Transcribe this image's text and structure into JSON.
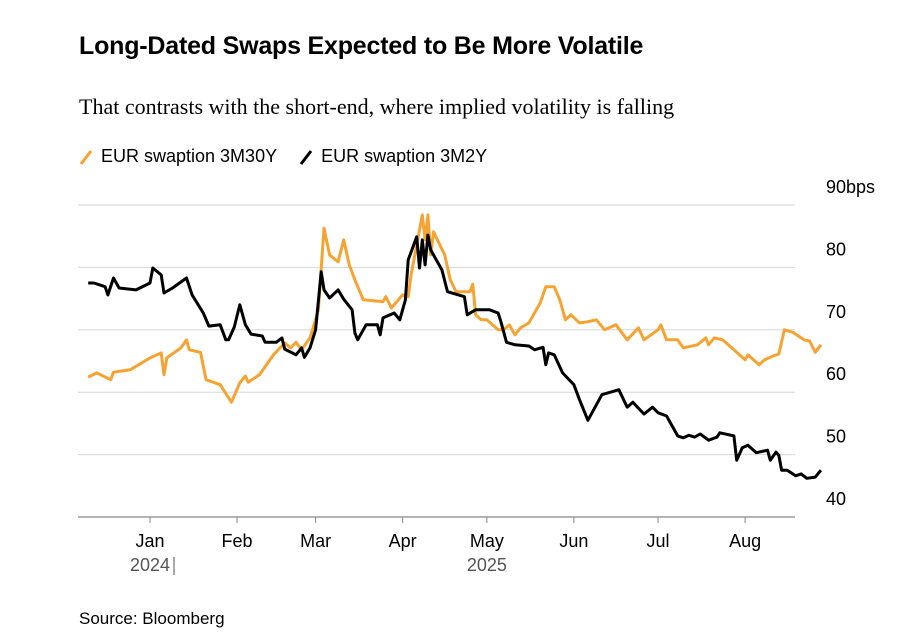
{
  "title": "Long-Dated Swaps Expected to Be More Volatile",
  "subtitle": "That contrasts with the short-end, where implied volatility is falling",
  "source": "Source: Bloomberg",
  "chart_data": {
    "type": "line",
    "title": "Long-Dated Swaps Expected to Be More Volatile",
    "ylim": [
      40,
      90
    ],
    "y_unit": "bps",
    "y_ticks": [
      "90bps",
      "80",
      "70",
      "60",
      "50",
      "40"
    ],
    "y_tick_values": [
      90,
      80,
      70,
      60,
      50,
      40
    ],
    "x_ticks": [
      {
        "label": "Jan",
        "date": "2025-01-01"
      },
      {
        "label": "Feb",
        "date": "2025-02-01"
      },
      {
        "label": "Mar",
        "date": "2025-03-01"
      },
      {
        "label": "Apr",
        "date": "2025-04-01"
      },
      {
        "label": "May",
        "date": "2025-05-01"
      },
      {
        "label": "Jun",
        "date": "2025-06-01"
      },
      {
        "label": "Jul",
        "date": "2025-07-01"
      },
      {
        "label": "Aug",
        "date": "2025-08-01"
      }
    ],
    "year_labels": [
      {
        "label": "2024",
        "date": "2025-01-01"
      },
      {
        "label": "2025",
        "date": "2025-05-01"
      }
    ],
    "grid": true,
    "legend": "top-left",
    "series": [
      {
        "name": "EUR swaption 3M30Y",
        "color": "#f5a332",
        "points": [
          [
            "2024-12-10",
            62.4
          ],
          [
            "2024-12-13",
            63.1
          ],
          [
            "2024-12-18",
            62.0
          ],
          [
            "2024-12-19",
            63.2
          ],
          [
            "2024-12-25",
            63.6
          ],
          [
            "2024-12-28",
            64.4
          ],
          [
            "2025-01-01",
            65.5
          ],
          [
            "2025-01-05",
            66.3
          ],
          [
            "2025-01-06",
            62.8
          ],
          [
            "2025-01-07",
            65.5
          ],
          [
            "2025-01-12",
            67.1
          ],
          [
            "2025-01-14",
            68.4
          ],
          [
            "2025-01-15",
            66.8
          ],
          [
            "2025-01-19",
            66.4
          ],
          [
            "2025-01-21",
            62.0
          ],
          [
            "2025-01-26",
            61.2
          ],
          [
            "2025-01-30",
            58.4
          ],
          [
            "2025-01-31",
            59.4
          ],
          [
            "2025-02-02",
            61.5
          ],
          [
            "2025-02-04",
            62.6
          ],
          [
            "2025-02-05",
            61.6
          ],
          [
            "2025-02-09",
            62.8
          ],
          [
            "2025-02-14",
            66.0
          ],
          [
            "2025-02-18",
            67.9
          ],
          [
            "2025-02-20",
            67.1
          ],
          [
            "2025-02-22",
            68.0
          ],
          [
            "2025-02-24",
            66.8
          ],
          [
            "2025-02-27",
            68.7
          ],
          [
            "2025-03-02",
            73.2
          ],
          [
            "2025-03-04",
            86.3
          ],
          [
            "2025-03-06",
            82.0
          ],
          [
            "2025-03-09",
            80.9
          ],
          [
            "2025-03-11",
            84.4
          ],
          [
            "2025-03-13",
            80.4
          ],
          [
            "2025-03-15",
            78.0
          ],
          [
            "2025-03-18",
            74.8
          ],
          [
            "2025-03-25",
            74.5
          ],
          [
            "2025-03-26",
            75.3
          ],
          [
            "2025-03-28",
            73.5
          ],
          [
            "2025-04-01",
            75.6
          ],
          [
            "2025-04-03",
            75.3
          ],
          [
            "2025-04-04",
            78.8
          ],
          [
            "2025-04-07",
            86.0
          ],
          [
            "2025-04-08",
            88.4
          ],
          [
            "2025-04-09",
            84.4
          ],
          [
            "2025-04-10",
            88.4
          ],
          [
            "2025-04-11",
            82.0
          ],
          [
            "2025-04-12",
            85.7
          ],
          [
            "2025-04-16",
            82.0
          ],
          [
            "2025-04-18",
            78.0
          ],
          [
            "2025-04-20",
            76.1
          ],
          [
            "2025-04-25",
            76.1
          ],
          [
            "2025-04-26",
            77.3
          ],
          [
            "2025-04-27",
            72.4
          ],
          [
            "2025-04-29",
            71.6
          ],
          [
            "2025-05-01",
            71.6
          ],
          [
            "2025-05-05",
            70.0
          ],
          [
            "2025-05-07",
            70.0
          ],
          [
            "2025-05-09",
            70.8
          ],
          [
            "2025-05-11",
            69.2
          ],
          [
            "2025-05-13",
            70.3
          ],
          [
            "2025-05-16",
            71.1
          ],
          [
            "2025-05-20",
            74.3
          ],
          [
            "2025-05-22",
            76.9
          ],
          [
            "2025-05-25",
            76.9
          ],
          [
            "2025-05-27",
            74.8
          ],
          [
            "2025-05-29",
            71.6
          ],
          [
            "2025-05-31",
            72.4
          ],
          [
            "2025-06-03",
            71.1
          ],
          [
            "2025-06-06",
            71.3
          ],
          [
            "2025-06-09",
            71.6
          ],
          [
            "2025-06-12",
            70.0
          ],
          [
            "2025-06-16",
            70.8
          ],
          [
            "2025-06-20",
            68.4
          ],
          [
            "2025-06-24",
            70.3
          ],
          [
            "2025-06-26",
            68.4
          ],
          [
            "2025-07-01",
            70.0
          ],
          [
            "2025-07-02",
            70.8
          ],
          [
            "2025-07-04",
            68.4
          ],
          [
            "2025-07-08",
            68.4
          ],
          [
            "2025-07-10",
            67.1
          ],
          [
            "2025-07-15",
            67.6
          ],
          [
            "2025-07-18",
            68.7
          ],
          [
            "2025-07-19",
            67.6
          ],
          [
            "2025-07-21",
            68.7
          ],
          [
            "2025-07-24",
            68.4
          ],
          [
            "2025-07-30",
            66.0
          ],
          [
            "2025-08-01",
            65.2
          ],
          [
            "2025-08-02",
            66.0
          ],
          [
            "2025-08-06",
            64.4
          ],
          [
            "2025-08-08",
            65.2
          ],
          [
            "2025-08-11",
            65.8
          ],
          [
            "2025-08-13",
            66.1
          ],
          [
            "2025-08-15",
            70.0
          ],
          [
            "2025-08-18",
            69.6
          ],
          [
            "2025-08-22",
            68.4
          ],
          [
            "2025-08-24",
            68.2
          ],
          [
            "2025-08-26",
            66.4
          ],
          [
            "2025-08-28",
            67.6
          ]
        ]
      },
      {
        "name": "EUR swaption 3M2Y",
        "color": "#000000",
        "points": [
          [
            "2024-12-10",
            77.5
          ],
          [
            "2024-12-12",
            77.5
          ],
          [
            "2024-12-16",
            76.9
          ],
          [
            "2024-12-17",
            75.6
          ],
          [
            "2024-12-19",
            78.3
          ],
          [
            "2024-12-21",
            76.7
          ],
          [
            "2024-12-27",
            76.4
          ],
          [
            "2025-01-01",
            77.5
          ],
          [
            "2025-01-02",
            79.9
          ],
          [
            "2025-01-05",
            78.8
          ],
          [
            "2025-01-06",
            75.9
          ],
          [
            "2025-01-09",
            76.7
          ],
          [
            "2025-01-14",
            78.3
          ],
          [
            "2025-01-16",
            75.6
          ],
          [
            "2025-01-20",
            72.7
          ],
          [
            "2025-01-22",
            70.6
          ],
          [
            "2025-01-26",
            70.8
          ],
          [
            "2025-01-28",
            68.4
          ],
          [
            "2025-01-29",
            68.4
          ],
          [
            "2025-01-31",
            70.4
          ],
          [
            "2025-02-02",
            74.0
          ],
          [
            "2025-02-04",
            70.8
          ],
          [
            "2025-02-06",
            69.3
          ],
          [
            "2025-02-10",
            69.0
          ],
          [
            "2025-02-11",
            68.0
          ],
          [
            "2025-02-15",
            68.0
          ],
          [
            "2025-02-17",
            68.7
          ],
          [
            "2025-02-18",
            66.9
          ],
          [
            "2025-02-22",
            66.0
          ],
          [
            "2025-02-24",
            67.1
          ],
          [
            "2025-02-25",
            65.6
          ],
          [
            "2025-02-27",
            67.1
          ],
          [
            "2025-03-01",
            70.0
          ],
          [
            "2025-03-03",
            79.3
          ],
          [
            "2025-03-04",
            76.4
          ],
          [
            "2025-03-06",
            75.1
          ],
          [
            "2025-03-09",
            76.4
          ],
          [
            "2025-03-11",
            74.9
          ],
          [
            "2025-03-14",
            73.2
          ],
          [
            "2025-03-15",
            69.5
          ],
          [
            "2025-03-16",
            68.4
          ],
          [
            "2025-03-19",
            70.8
          ],
          [
            "2025-03-23",
            70.8
          ],
          [
            "2025-03-24",
            69.2
          ],
          [
            "2025-03-25",
            71.9
          ],
          [
            "2025-03-29",
            72.7
          ],
          [
            "2025-03-31",
            71.6
          ],
          [
            "2025-04-02",
            74.8
          ],
          [
            "2025-04-03",
            81.2
          ],
          [
            "2025-04-06",
            84.9
          ],
          [
            "2025-04-07",
            79.9
          ],
          [
            "2025-04-08",
            84.4
          ],
          [
            "2025-04-09",
            80.4
          ],
          [
            "2025-04-10",
            85.2
          ],
          [
            "2025-04-11",
            82.8
          ],
          [
            "2025-04-15",
            79.6
          ],
          [
            "2025-04-17",
            76.1
          ],
          [
            "2025-04-23",
            75.3
          ],
          [
            "2025-04-24",
            72.4
          ],
          [
            "2025-04-27",
            73.2
          ],
          [
            "2025-05-02",
            73.2
          ],
          [
            "2025-05-05",
            72.7
          ],
          [
            "2025-05-06",
            71.3
          ],
          [
            "2025-05-08",
            68.0
          ],
          [
            "2025-05-11",
            67.6
          ],
          [
            "2025-05-16",
            67.4
          ],
          [
            "2025-05-18",
            66.8
          ],
          [
            "2025-05-21",
            67.2
          ],
          [
            "2025-05-22",
            64.4
          ],
          [
            "2025-05-23",
            66.3
          ],
          [
            "2025-05-25",
            66.0
          ],
          [
            "2025-05-28",
            63.1
          ],
          [
            "2025-06-01",
            61.2
          ],
          [
            "2025-06-03",
            58.8
          ],
          [
            "2025-06-06",
            55.5
          ],
          [
            "2025-06-11",
            59.6
          ],
          [
            "2025-06-17",
            60.4
          ],
          [
            "2025-06-20",
            57.6
          ],
          [
            "2025-06-22",
            58.4
          ],
          [
            "2025-06-26",
            56.5
          ],
          [
            "2025-06-29",
            57.6
          ],
          [
            "2025-07-01",
            56.7
          ],
          [
            "2025-07-04",
            56.2
          ],
          [
            "2025-07-08",
            53.0
          ],
          [
            "2025-07-10",
            52.7
          ],
          [
            "2025-07-12",
            53.1
          ],
          [
            "2025-07-14",
            52.8
          ],
          [
            "2025-07-16",
            53.3
          ],
          [
            "2025-07-19",
            52.3
          ],
          [
            "2025-07-22",
            52.8
          ],
          [
            "2025-07-23",
            53.5
          ],
          [
            "2025-07-28",
            53.0
          ],
          [
            "2025-07-29",
            49.1
          ],
          [
            "2025-07-31",
            51.1
          ],
          [
            "2025-08-02",
            51.5
          ],
          [
            "2025-08-05",
            50.3
          ],
          [
            "2025-08-09",
            50.7
          ],
          [
            "2025-08-10",
            49.1
          ],
          [
            "2025-08-12",
            50.4
          ],
          [
            "2025-08-13",
            49.9
          ],
          [
            "2025-08-14",
            47.5
          ],
          [
            "2025-08-16",
            47.5
          ],
          [
            "2025-08-19",
            46.6
          ],
          [
            "2025-08-21",
            46.9
          ],
          [
            "2025-08-23",
            46.2
          ],
          [
            "2025-08-26",
            46.4
          ],
          [
            "2025-08-28",
            47.5
          ]
        ]
      }
    ]
  }
}
